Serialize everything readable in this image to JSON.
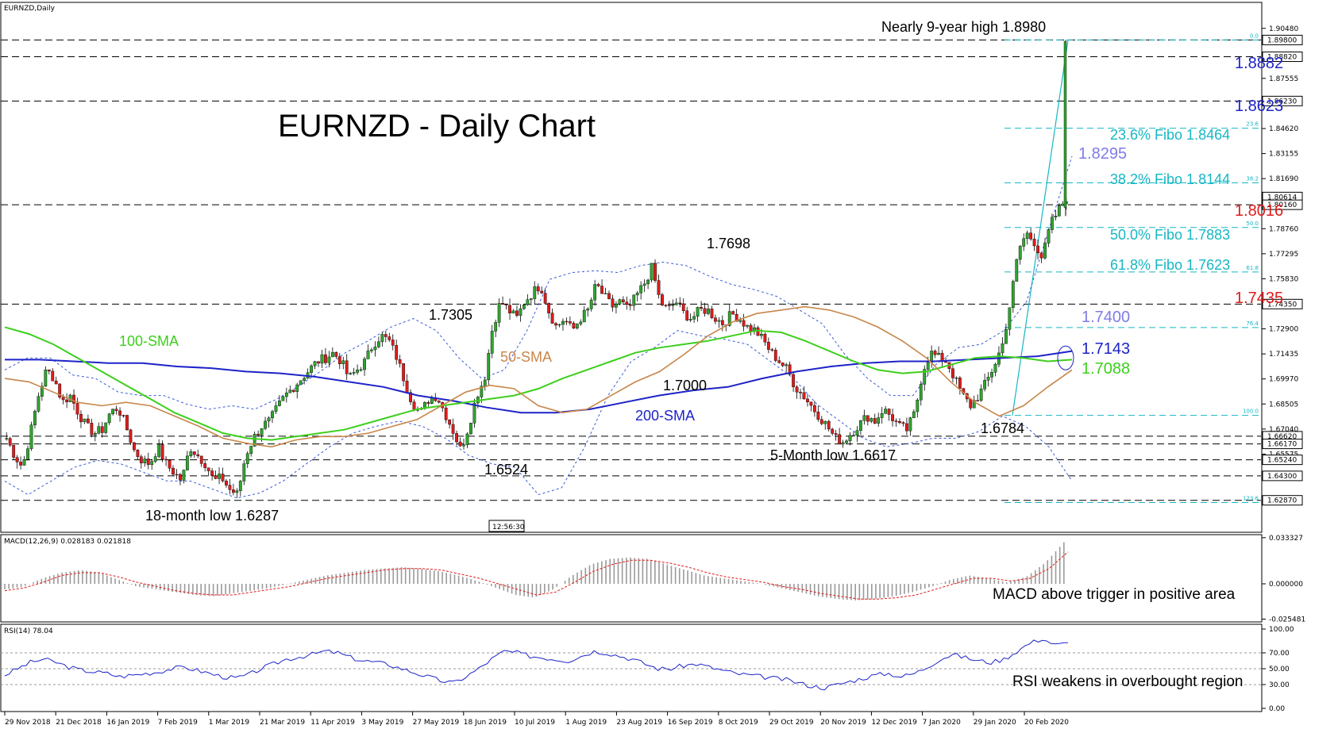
{
  "chart_data": {
    "type": "candlestick",
    "symbol_label": "EURNZD,Daily",
    "title": "EURNZD - Daily Chart",
    "price_axis": {
      "range": [
        1.61,
        1.92
      ],
      "ticks": [
        "1.90480",
        "1.87555",
        "1.84620",
        "1.83155",
        "1.81690",
        "1.78760",
        "1.77295",
        "1.75830",
        "1.72900",
        "1.71435",
        "1.69970",
        "1.68505",
        "1.67040",
        "1.65575"
      ],
      "highlighted": [
        "1.89800",
        "1.88820",
        "1.86230",
        "1.80614",
        "1.80160",
        "1.74350",
        "1.66620",
        "1.66170",
        "1.65240",
        "1.64300",
        "1.62870"
      ]
    },
    "time_labels": [
      "29 Nov 2018",
      "21 Dec 2018",
      "16 Jan 2019",
      "7 Feb 2019",
      "1 Mar 2019",
      "21 Mar 2019",
      "11 Apr 2019",
      "3 May 2019",
      "27 May 2019",
      "18 Jun 2019",
      "10 Jul 2019",
      "1 Aug 2019",
      "23 Aug 2019",
      "16 Sep 2019",
      "8 Oct 2019",
      "29 Oct 2019",
      "20 Nov 2019",
      "12 Dec 2019",
      "7 Jan 2020",
      "29 Jan 2020",
      "20 Feb 2020"
    ],
    "cursor_time": "12:56:30",
    "price_path": [
      1.665,
      1.655,
      1.648,
      1.668,
      1.69,
      1.705,
      1.7,
      1.686,
      1.69,
      1.68,
      1.672,
      1.668,
      1.67,
      1.68,
      1.683,
      1.672,
      1.658,
      1.652,
      1.65,
      1.66,
      1.65,
      1.645,
      1.64,
      1.66,
      1.655,
      1.65,
      1.64,
      1.642,
      1.635,
      1.632,
      1.655,
      1.665,
      1.672,
      1.675,
      1.683,
      1.69,
      1.695,
      1.7,
      1.705,
      1.71,
      1.712,
      1.715,
      1.71,
      1.7,
      1.705,
      1.71,
      1.72,
      1.725,
      1.722,
      1.712,
      1.698,
      1.685,
      1.68,
      1.688,
      1.69,
      1.68,
      1.67,
      1.658,
      1.672,
      1.69,
      1.7,
      1.73,
      1.745,
      1.74,
      1.735,
      1.745,
      1.75,
      1.755,
      1.74,
      1.73,
      1.735,
      1.728,
      1.735,
      1.74,
      1.755,
      1.748,
      1.742,
      1.745,
      1.74,
      1.748,
      1.755,
      1.765,
      1.745,
      1.74,
      1.745,
      1.738,
      1.735,
      1.74,
      1.74,
      1.735,
      1.732,
      1.738,
      1.735,
      1.73,
      1.728,
      1.722,
      1.715,
      1.71,
      1.705,
      1.695,
      1.69,
      1.684,
      1.678,
      1.672,
      1.665,
      1.663,
      1.668,
      1.673,
      1.678,
      1.675,
      1.682,
      1.678,
      1.672,
      1.67,
      1.68,
      1.705,
      1.715,
      1.712,
      1.71,
      1.7,
      1.69,
      1.684,
      1.69,
      1.698,
      1.708,
      1.72,
      1.745,
      1.775,
      1.785,
      1.78,
      1.77,
      1.79,
      1.798,
      1.806
    ],
    "spike": {
      "low": 1.795,
      "high": 1.898
    },
    "sma50": [
      1.7,
      1.698,
      1.692,
      1.686,
      1.684,
      1.686,
      1.684,
      1.678,
      1.672,
      1.665,
      1.662,
      1.66,
      1.664,
      1.666,
      1.666,
      1.668,
      1.672,
      1.676,
      1.684,
      1.692,
      1.696,
      1.694,
      1.684,
      1.68,
      1.682,
      1.69,
      1.698,
      1.704,
      1.714,
      1.725,
      1.733,
      1.738,
      1.74,
      1.742,
      1.74,
      1.736,
      1.73,
      1.722,
      1.712,
      1.698,
      1.686,
      1.678,
      1.684,
      1.695,
      1.705
    ],
    "sma100": [
      1.73,
      1.726,
      1.72,
      1.712,
      1.704,
      1.696,
      1.688,
      1.68,
      1.674,
      1.668,
      1.665,
      1.664,
      1.666,
      1.668,
      1.67,
      1.674,
      1.678,
      1.682,
      1.684,
      1.686,
      1.688,
      1.69,
      1.694,
      1.7,
      1.705,
      1.71,
      1.715,
      1.718,
      1.72,
      1.722,
      1.725,
      1.728,
      1.727,
      1.722,
      1.716,
      1.71,
      1.705,
      1.703,
      1.704,
      1.708,
      1.712,
      1.713,
      1.712,
      1.71,
      1.711
    ],
    "sma200": [
      1.711,
      1.711,
      1.71,
      1.709,
      1.709,
      1.707,
      1.706,
      1.704,
      1.703,
      1.701,
      1.698,
      1.695,
      1.69,
      1.687,
      1.683,
      1.68,
      1.68,
      1.682,
      1.686,
      1.69,
      1.693,
      1.695,
      1.7,
      1.704,
      1.707,
      1.709,
      1.71,
      1.71,
      1.711,
      1.712,
      1.713,
      1.716
    ],
    "bollinger_upper": [
      1.705,
      1.712,
      1.712,
      1.702,
      1.7,
      1.692,
      1.69,
      1.69,
      1.685,
      1.682,
      1.684,
      1.682,
      1.688,
      1.696,
      1.705,
      1.715,
      1.722,
      1.73,
      1.735,
      1.728,
      1.712,
      1.7,
      1.705,
      1.728,
      1.758,
      1.762,
      1.763,
      1.762,
      1.766,
      1.768,
      1.766,
      1.76,
      1.755,
      1.752,
      1.748,
      1.74,
      1.732,
      1.714,
      1.7,
      1.69,
      1.69,
      1.708,
      1.718,
      1.72,
      1.728,
      1.745,
      1.788,
      1.83
    ],
    "bollinger_lower": [
      1.64,
      1.632,
      1.64,
      1.648,
      1.652,
      1.65,
      1.645,
      1.64,
      1.64,
      1.635,
      1.63,
      1.633,
      1.64,
      1.65,
      1.66,
      1.668,
      1.672,
      1.675,
      1.672,
      1.665,
      1.655,
      1.65,
      1.648,
      1.632,
      1.636,
      1.66,
      1.69,
      1.71,
      1.718,
      1.728,
      1.725,
      1.723,
      1.72,
      1.71,
      1.7,
      1.685,
      1.675,
      1.665,
      1.66,
      1.662,
      1.665,
      1.665,
      1.669,
      1.678,
      1.672,
      1.66,
      1.64
    ],
    "horizontal_levels": [
      1.898,
      1.8882,
      1.8623,
      1.8016,
      1.7435,
      1.6662,
      1.6617,
      1.6524,
      1.643,
      1.6287
    ],
    "fibonacci": {
      "levels": [
        {
          "price": 1.898,
          "tag": "0.0"
        },
        {
          "price": 1.8464,
          "tag": "23.6"
        },
        {
          "price": 1.8144,
          "tag": "38.2"
        },
        {
          "price": 1.7883,
          "tag": "50.0"
        },
        {
          "price": 1.7623,
          "tag": "61.8"
        },
        {
          "price": 1.7298,
          "tag": "76.4"
        },
        {
          "price": 1.6784,
          "tag": "100.0"
        },
        {
          "price": 1.6274,
          "tag": "123.6"
        }
      ]
    },
    "annotations": [
      {
        "text": "Nearly 9-year high 1.8980",
        "color": "#000000"
      },
      {
        "text": "1.8882",
        "color": "#1d23c8"
      },
      {
        "text": "1.8623",
        "color": "#1d23c8"
      },
      {
        "text": "23.6% Fibo 1.8464",
        "color": "#16b7c4"
      },
      {
        "text": "1.8295",
        "color": "#7f7ce8"
      },
      {
        "text": "38.2% Fibo 1.8144",
        "color": "#16b7c4"
      },
      {
        "text": "1.8016",
        "color": "#e01b1b"
      },
      {
        "text": "50.0% Fibo 1.7883",
        "color": "#16b7c4"
      },
      {
        "text": "61.8% Fibo 1.7623",
        "color": "#16b7c4"
      },
      {
        "text": "1.7435",
        "color": "#e01b1b"
      },
      {
        "text": "1.7400",
        "color": "#7f7ce8"
      },
      {
        "text": "1.7143",
        "color": "#1d23c8"
      },
      {
        "text": "1.7088",
        "color": "#3dcf1c"
      },
      {
        "text": "1.7698",
        "color": "#000000"
      },
      {
        "text": "1.7305",
        "color": "#000000"
      },
      {
        "text": "1.7000",
        "color": "#000000"
      },
      {
        "text": "1.6784",
        "color": "#000000"
      },
      {
        "text": "1.6524",
        "color": "#000000"
      },
      {
        "text": "5-Month low 1.6617",
        "color": "#000000"
      },
      {
        "text": "18-month low 1.6287",
        "color": "#000000"
      },
      {
        "text": "100-SMA",
        "color": "#3dcf1c"
      },
      {
        "text": "50-SMA",
        "color": "#c8864a"
      },
      {
        "text": "200-SMA",
        "color": "#1d23c8"
      }
    ],
    "macd": {
      "label": "MACD(12,26,9) 0.028183 0.021818",
      "ticks": [
        "0.033327",
        "0.000000",
        "-0.025481"
      ],
      "range": [
        -0.0275,
        0.0355
      ],
      "histogram": [
        -0.004,
        -0.002,
        0.004,
        0.008,
        0.01,
        0.008,
        0.003,
        -0.002,
        -0.004,
        -0.006,
        -0.008,
        -0.009,
        -0.007,
        -0.005,
        -0.003,
        0.0,
        0.003,
        0.006,
        0.008,
        0.01,
        0.011,
        0.012,
        0.011,
        0.009,
        0.006,
        0.002,
        -0.003,
        -0.008,
        -0.01,
        -0.004,
        0.006,
        0.014,
        0.018,
        0.019,
        0.018,
        0.014,
        0.01,
        0.006,
        0.004,
        0.002,
        0.0,
        -0.003,
        -0.006,
        -0.009,
        -0.011,
        -0.012,
        -0.011,
        -0.009,
        -0.006,
        -0.002,
        0.003,
        0.006,
        0.004,
        0.001,
        0.005,
        0.015,
        0.03
      ],
      "signal": [
        -0.005,
        -0.003,
        0.001,
        0.006,
        0.008,
        0.008,
        0.005,
        0.001,
        -0.002,
        -0.005,
        -0.007,
        -0.008,
        -0.008,
        -0.006,
        -0.004,
        -0.002,
        0.001,
        0.004,
        0.006,
        0.008,
        0.01,
        0.011,
        0.011,
        0.01,
        0.007,
        0.004,
        0.0,
        -0.004,
        -0.008,
        -0.006,
        0.001,
        0.009,
        0.014,
        0.017,
        0.017,
        0.015,
        0.012,
        0.008,
        0.005,
        0.003,
        0.001,
        -0.002,
        -0.004,
        -0.007,
        -0.009,
        -0.011,
        -0.011,
        -0.01,
        -0.008,
        -0.004,
        0.0,
        0.004,
        0.004,
        0.002,
        0.004,
        0.011,
        0.023
      ],
      "note": "MACD above trigger in positive area"
    },
    "rsi": {
      "label": "RSI(14) 78.04",
      "ticks": [
        "100.00",
        "70.00",
        "50.00",
        "30.00",
        "0.00"
      ],
      "range": [
        0,
        100
      ],
      "levels": [
        70,
        50,
        30
      ],
      "values": [
        42,
        50,
        58,
        62,
        58,
        52,
        48,
        46,
        44,
        40,
        42,
        44,
        46,
        50,
        52,
        48,
        44,
        40,
        38,
        42,
        50,
        56,
        62,
        65,
        68,
        72,
        70,
        64,
        60,
        58,
        55,
        50,
        45,
        40,
        35,
        32,
        40,
        50,
        62,
        72,
        70,
        66,
        64,
        62,
        60,
        66,
        72,
        70,
        66,
        62,
        56,
        50,
        50,
        54,
        56,
        52,
        48,
        44,
        42,
        40,
        38,
        36,
        32,
        28,
        26,
        30,
        34,
        38,
        42,
        44,
        40,
        44,
        52,
        62,
        68,
        64,
        60,
        58,
        62,
        72,
        82,
        88,
        80,
        82
      ],
      "note": "RSI weakens in overbought region"
    }
  }
}
